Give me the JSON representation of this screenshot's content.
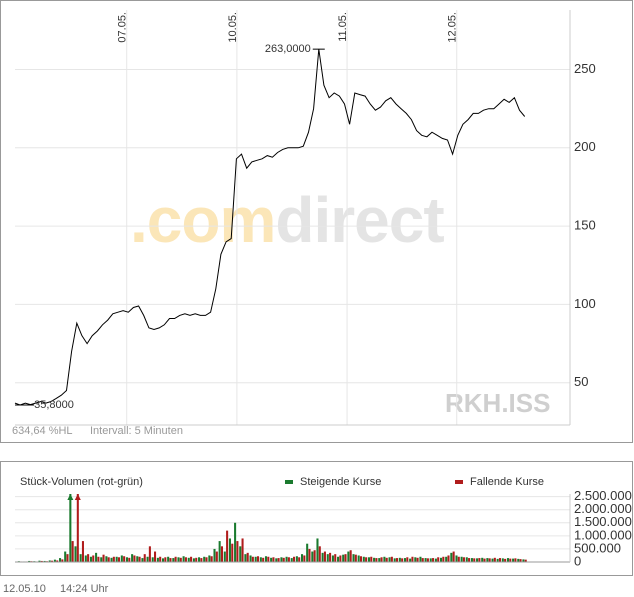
{
  "chart_data": [
    {
      "type": "line",
      "color": "#000000",
      "xlim": [
        0,
        107.8
      ],
      "xticks": [
        {
          "value": 21.7,
          "label": "07.05."
        },
        {
          "value": 43.1,
          "label": "10.05."
        },
        {
          "value": 64.5,
          "label": "11.05."
        },
        {
          "value": 85.8,
          "label": "12.05."
        }
      ],
      "ylim": [
        23,
        288
      ],
      "yticks": [
        50,
        100,
        150,
        200,
        250
      ],
      "grid": true,
      "values": [
        37,
        35.8,
        37,
        36,
        37,
        38,
        37,
        38,
        40,
        42,
        45,
        70,
        88,
        80,
        75,
        80,
        83,
        87,
        90,
        94,
        95,
        96,
        95,
        98,
        99,
        93,
        85,
        84,
        85,
        87,
        91,
        91,
        93,
        94,
        93,
        94,
        93,
        93,
        95,
        110,
        132,
        140,
        142,
        193,
        196,
        187,
        191,
        192,
        193,
        195,
        194,
        197,
        199,
        200,
        200,
        200,
        201,
        210,
        225,
        263,
        240,
        232,
        235,
        233,
        228,
        215,
        235,
        234,
        233,
        228,
        224,
        226,
        230,
        232,
        228,
        225,
        222,
        218,
        211,
        208,
        207,
        210,
        208,
        206,
        205,
        196,
        208,
        215,
        218,
        222,
        222,
        224,
        225,
        225,
        228,
        231,
        229,
        232,
        224,
        220
      ],
      "annotations": [
        "263,0000",
        "35,8000"
      ],
      "watermark_parts": [
        ".com",
        "direct"
      ],
      "symbol": "RKH.ISS",
      "footer": [
        "634,64 %HL",
        "Intervall: 5 Minuten"
      ]
    },
    {
      "type": "bar",
      "title": "Stück-Volumen (rot-grün)",
      "xlim": [
        0,
        107.8
      ],
      "ylim": [
        0,
        2600000
      ],
      "yticks": [
        0,
        {
          "value": 500000,
          "label": "500.000"
        },
        {
          "value": 1000000,
          "label": "1.000.000"
        },
        {
          "value": 1500000,
          "label": "1.500.000"
        },
        {
          "value": 2000000,
          "label": "2.000.000"
        },
        {
          "value": 2500000,
          "label": "2.500.000"
        }
      ],
      "series": [
        {
          "name": "Steigende Kurse",
          "color": "#1a7a2e",
          "values": [
            20000,
            30000,
            20000,
            40000,
            30000,
            50000,
            40000,
            60000,
            90000,
            150000,
            400000,
            2700000,
            600000,
            300000,
            250000,
            200000,
            350000,
            180000,
            220000,
            160000,
            200000,
            250000,
            180000,
            300000,
            220000,
            150000,
            200000,
            180000,
            160000,
            140000,
            200000,
            150000,
            180000,
            220000,
            160000,
            140000,
            180000,
            200000,
            250000,
            500000,
            800000,
            400000,
            900000,
            1500000,
            600000,
            300000,
            250000,
            200000,
            180000,
            220000,
            160000,
            140000,
            180000,
            200000,
            150000,
            220000,
            300000,
            700000,
            400000,
            900000,
            350000,
            300000,
            250000,
            200000,
            280000,
            400000,
            300000,
            250000,
            200000,
            180000,
            160000,
            150000,
            200000,
            180000,
            140000,
            160000,
            150000,
            130000,
            180000,
            200000,
            150000,
            140000,
            130000,
            160000,
            200000,
            350000,
            250000,
            200000,
            180000,
            150000,
            140000,
            160000,
            150000,
            130000,
            120000,
            140000,
            150000,
            130000,
            120000,
            100000
          ]
        },
        {
          "name": "Fallende Kurse",
          "color": "#b01c1c",
          "values": [
            10000,
            20000,
            20000,
            30000,
            20000,
            40000,
            30000,
            50000,
            60000,
            100000,
            300000,
            800000,
            2700000,
            800000,
            300000,
            250000,
            200000,
            280000,
            180000,
            200000,
            180000,
            220000,
            160000,
            250000,
            200000,
            300000,
            600000,
            400000,
            200000,
            180000,
            150000,
            200000,
            160000,
            180000,
            200000,
            160000,
            150000,
            180000,
            220000,
            400000,
            600000,
            1200000,
            700000,
            800000,
            900000,
            350000,
            200000,
            220000,
            160000,
            200000,
            180000,
            150000,
            160000,
            180000,
            200000,
            180000,
            250000,
            500000,
            450000,
            600000,
            400000,
            350000,
            300000,
            250000,
            300000,
            450000,
            280000,
            220000,
            180000,
            200000,
            150000,
            180000,
            160000,
            200000,
            150000,
            140000,
            180000,
            200000,
            160000,
            150000,
            140000,
            150000,
            180000,
            200000,
            250000,
            400000,
            200000,
            180000,
            150000,
            140000,
            150000,
            130000,
            140000,
            160000,
            150000,
            120000,
            130000,
            140000,
            110000,
            90000
          ]
        }
      ],
      "timestamp": [
        "12.05.10",
        "14:24 Uhr"
      ]
    }
  ]
}
